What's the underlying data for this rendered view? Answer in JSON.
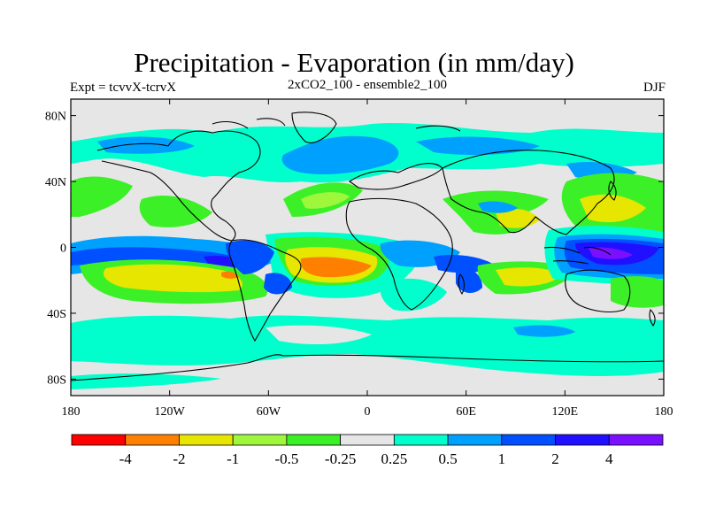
{
  "title": "Precipitation - Evaporation (in mm/day)",
  "subtitle_left": "Expt = tcvvX-tcrvX",
  "subtitle_center": "2xCO2_100 - ensemble2_100",
  "subtitle_right": "DJF",
  "lat_ticks": [
    {
      "value": 80,
      "label": "80N"
    },
    {
      "value": 40,
      "label": "40N"
    },
    {
      "value": 0,
      "label": "0"
    },
    {
      "value": -40,
      "label": "40S"
    },
    {
      "value": -80,
      "label": "80S"
    }
  ],
  "lon_ticks": [
    {
      "value": -180,
      "label": "180"
    },
    {
      "value": -120,
      "label": "120W"
    },
    {
      "value": -60,
      "label": "60W"
    },
    {
      "value": 0,
      "label": "0"
    },
    {
      "value": 60,
      "label": "60E"
    },
    {
      "value": 120,
      "label": "120E"
    },
    {
      "value": 180,
      "label": "180"
    }
  ],
  "colorbar": {
    "colors": [
      "#ff0000",
      "#ff8000",
      "#e6e600",
      "#9ff73c",
      "#3cf028",
      "#e6e6e6",
      "#00ffcc",
      "#00a0ff",
      "#0050ff",
      "#2010ff",
      "#7a10ff"
    ],
    "labels": [
      "-4",
      "-2",
      "-1",
      "-0.5",
      "-0.25",
      "0.25",
      "0.5",
      "1",
      "2",
      "4"
    ]
  },
  "map_background": "#e6e6e6"
}
